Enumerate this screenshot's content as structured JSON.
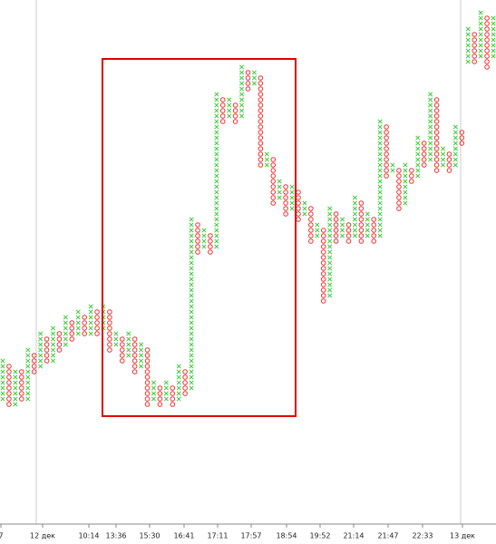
{
  "chart_data": {
    "type": "point_and_figure",
    "first_column": "X",
    "x_color": "#33cc33",
    "o_color": "#ee3333",
    "columns": [
      {
        "low": 5,
        "high": 12
      },
      {
        "low": 4,
        "high": 11
      },
      {
        "low": 4,
        "high": 10
      },
      {
        "low": 5,
        "high": 10
      },
      {
        "low": 5,
        "high": 14
      },
      {
        "low": 10,
        "high": 13
      },
      {
        "low": 11,
        "high": 17
      },
      {
        "low": 12,
        "high": 16
      },
      {
        "low": 12,
        "high": 18
      },
      {
        "low": 14,
        "high": 17
      },
      {
        "low": 15,
        "high": 20
      },
      {
        "low": 16,
        "high": 19
      },
      {
        "low": 17,
        "high": 21
      },
      {
        "low": 17,
        "high": 20
      },
      {
        "low": 17,
        "high": 22
      },
      {
        "low": 17,
        "high": 21
      },
      {
        "low": 18,
        "high": 22
      },
      {
        "low": 14,
        "high": 21
      },
      {
        "low": 15,
        "high": 17
      },
      {
        "low": 12,
        "high": 16
      },
      {
        "low": 13,
        "high": 17
      },
      {
        "low": 10,
        "high": 16
      },
      {
        "low": 11,
        "high": 15
      },
      {
        "low": 4,
        "high": 14
      },
      {
        "low": 5,
        "high": 8
      },
      {
        "low": 4,
        "high": 7
      },
      {
        "low": 5,
        "high": 8
      },
      {
        "low": 4,
        "high": 7
      },
      {
        "low": 5,
        "high": 11
      },
      {
        "low": 6,
        "high": 10
      },
      {
        "low": 7,
        "high": 38
      },
      {
        "low": 32,
        "high": 37
      },
      {
        "low": 33,
        "high": 36
      },
      {
        "low": 32,
        "high": 35
      },
      {
        "low": 33,
        "high": 61
      },
      {
        "low": 56,
        "high": 60
      },
      {
        "low": 57,
        "high": 60
      },
      {
        "low": 56,
        "high": 59
      },
      {
        "low": 57,
        "high": 66
      },
      {
        "low": 62,
        "high": 65
      },
      {
        "low": 63,
        "high": 65
      },
      {
        "low": 48,
        "high": 64
      },
      {
        "low": 48,
        "high": 50
      },
      {
        "low": 41,
        "high": 49
      },
      {
        "low": 42,
        "high": 45
      },
      {
        "low": 39,
        "high": 44
      },
      {
        "low": 40,
        "high": 44
      },
      {
        "low": 38,
        "high": 43
      },
      {
        "low": 39,
        "high": 41
      },
      {
        "low": 34,
        "high": 40
      },
      {
        "low": 35,
        "high": 37
      },
      {
        "low": 23,
        "high": 36
      },
      {
        "low": 24,
        "high": 40
      },
      {
        "low": 34,
        "high": 39
      },
      {
        "low": 35,
        "high": 38
      },
      {
        "low": 34,
        "high": 37
      },
      {
        "low": 35,
        "high": 42
      },
      {
        "low": 34,
        "high": 41
      },
      {
        "low": 35,
        "high": 39
      },
      {
        "low": 34,
        "high": 38
      },
      {
        "low": 35,
        "high": 56
      },
      {
        "low": 46,
        "high": 55
      },
      {
        "low": 47,
        "high": 48
      },
      {
        "low": 40,
        "high": 47
      },
      {
        "low": 41,
        "high": 48
      },
      {
        "low": 45,
        "high": 47
      },
      {
        "low": 46,
        "high": 53
      },
      {
        "low": 48,
        "high": 52
      },
      {
        "low": 49,
        "high": 61
      },
      {
        "low": 47,
        "high": 60
      },
      {
        "low": 48,
        "high": 51
      },
      {
        "low": 47,
        "high": 50
      },
      {
        "low": 48,
        "high": 55
      },
      {
        "low": 52,
        "high": 54
      },
      {
        "low": 67,
        "high": 73
      },
      {
        "low": 67,
        "high": 72
      },
      {
        "low": 68,
        "high": 76
      },
      {
        "low": 66,
        "high": 75
      },
      {
        "low": 68,
        "high": 75
      }
    ],
    "x_labels": [
      "7",
      "12 дек",
      "10:14",
      "13:36",
      "15:30",
      "16:41",
      "17:11",
      "17:57",
      "18:54",
      "19:52",
      "21:14",
      "21:47",
      "22:33",
      "13 дек"
    ]
  }
}
